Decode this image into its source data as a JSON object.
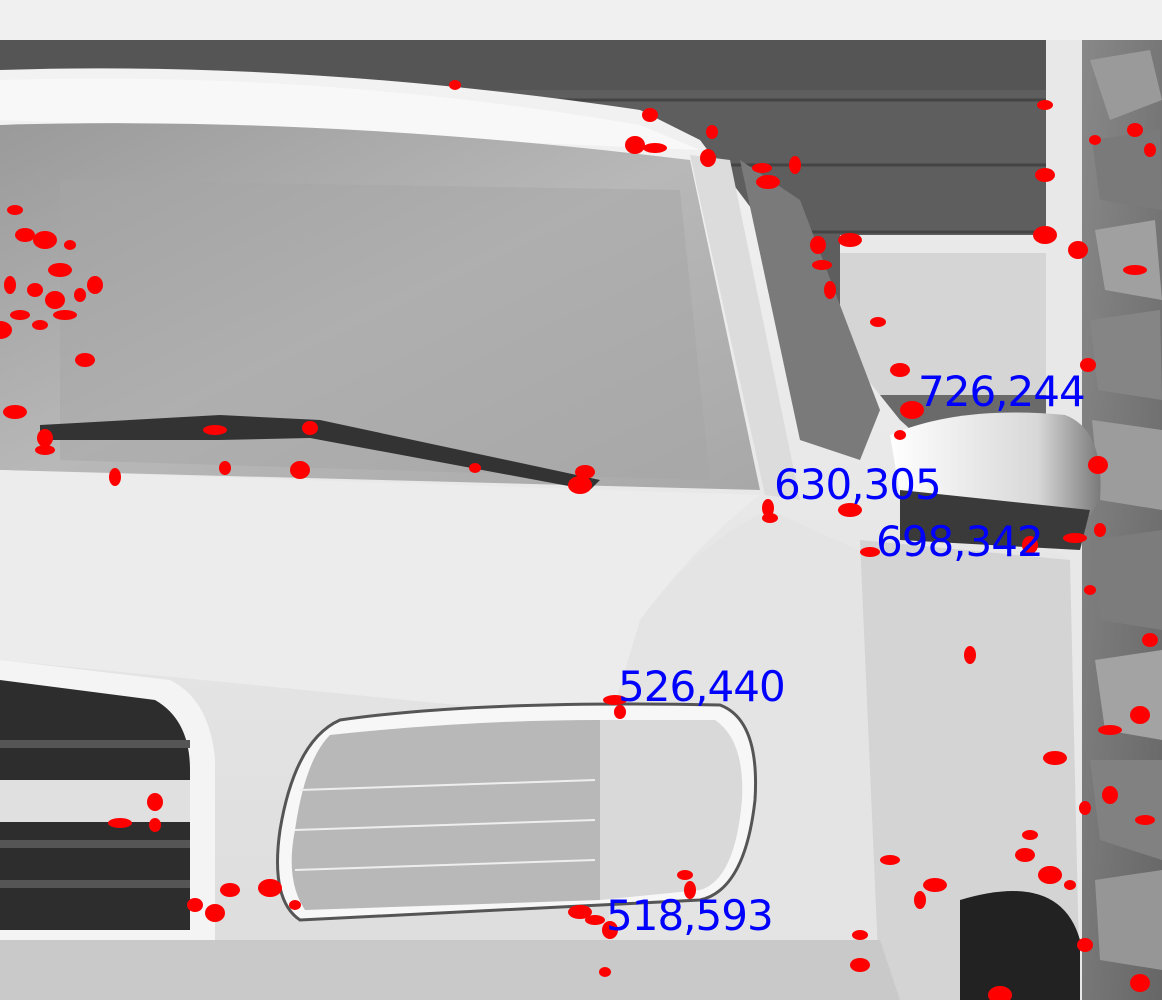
{
  "window": {
    "background": "#f0f0f0"
  },
  "image": {
    "description_icon": "photo-grayscale-truck",
    "marker_color": "#ff0000",
    "label_color": "#0000ff",
    "labels": [
      {
        "text": "726,244"
      },
      {
        "text": "630,305"
      },
      {
        "text": "698,342"
      },
      {
        "text": "526,440"
      },
      {
        "text": "518,593"
      }
    ]
  }
}
